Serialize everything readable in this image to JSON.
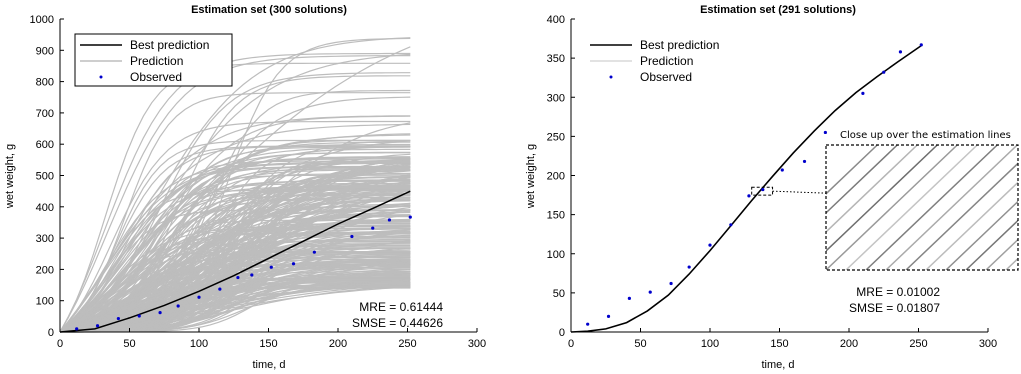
{
  "chart_data": [
    {
      "type": "line",
      "title": "Estimation set (300 solutions)",
      "xlabel": "time, d",
      "ylabel": "wet weight, g",
      "xlim": [
        0,
        300
      ],
      "ylim": [
        0,
        1000
      ],
      "xticks": [
        0,
        50,
        100,
        150,
        200,
        250,
        300
      ],
      "yticks": [
        0,
        100,
        200,
        300,
        400,
        500,
        600,
        700,
        800,
        900,
        1000
      ],
      "legend": {
        "position": "top-left",
        "entries": [
          "Best prediction",
          "Prediction",
          "Observed"
        ]
      },
      "colors": {
        "best": "#000000",
        "prediction": "#bdbdbd",
        "observed": "#0000cc"
      },
      "best_prediction": {
        "x": [
          0,
          25,
          50,
          75,
          100,
          125,
          150,
          175,
          200,
          225,
          252
        ],
        "y": [
          0,
          10,
          45,
          85,
          130,
          180,
          235,
          290,
          345,
          395,
          450
        ]
      },
      "prediction_solution_count": 300,
      "prediction_envelope": {
        "x_end": 252,
        "y_end_min": 140,
        "y_end_max": 995
      },
      "observed": {
        "x": [
          12,
          27,
          42,
          57,
          72,
          85,
          100,
          115,
          128,
          138,
          152,
          168,
          183,
          210,
          225,
          237,
          252
        ],
        "y": [
          10,
          20,
          43,
          51,
          62,
          83,
          111,
          137,
          174,
          182,
          207,
          218,
          255,
          305,
          332,
          358,
          367
        ]
      },
      "annotations": [
        "MRE = 0.61444",
        "SMSE = 0.44626"
      ]
    },
    {
      "type": "line",
      "title": "Estimation set (291 solutions)",
      "xlabel": "time, d",
      "ylabel": "wet weight, g",
      "xlim": [
        0,
        300
      ],
      "ylim": [
        0,
        400
      ],
      "xticks": [
        0,
        50,
        100,
        150,
        200,
        250,
        300
      ],
      "yticks": [
        0,
        50,
        100,
        150,
        200,
        250,
        300,
        350,
        400
      ],
      "legend": {
        "position": "top-left",
        "entries": [
          "Best prediction",
          "Prediction",
          "Observed"
        ]
      },
      "colors": {
        "best": "#000000",
        "prediction": "#bdbdbd",
        "observed": "#0000cc"
      },
      "best_prediction": {
        "x": [
          0,
          12,
          25,
          40,
          55,
          70,
          85,
          100,
          115,
          130,
          145,
          160,
          175,
          190,
          205,
          220,
          235,
          252
        ],
        "y": [
          0,
          1,
          4,
          12,
          27,
          47,
          74,
          104,
          136,
          168,
          199,
          229,
          257,
          283,
          306,
          326,
          345,
          366
        ]
      },
      "prediction_solution_count": 291,
      "observed": {
        "x": [
          12,
          27,
          42,
          57,
          72,
          85,
          100,
          115,
          128,
          138,
          152,
          168,
          183,
          210,
          225,
          237,
          252
        ],
        "y": [
          10,
          20,
          43,
          51,
          62,
          83,
          111,
          137,
          174,
          182,
          207,
          218,
          255,
          305,
          332,
          358,
          367
        ]
      },
      "zoom_region": {
        "x": [
          130,
          145
        ],
        "y": [
          175,
          185
        ]
      },
      "inset_title": "Close up over the estimation lines",
      "annotations": [
        "MRE = 0.01002",
        "SMSE = 0.01807"
      ]
    }
  ]
}
